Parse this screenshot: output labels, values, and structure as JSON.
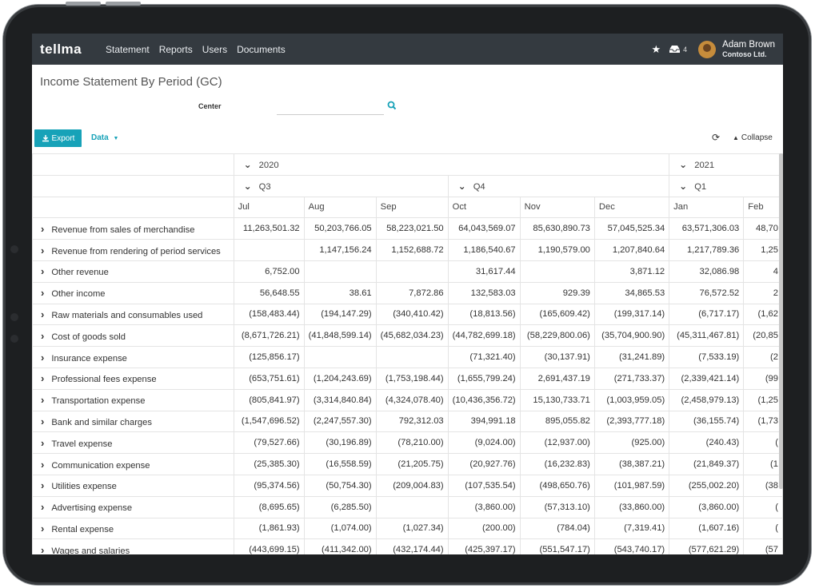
{
  "navbar": {
    "logo": "tellma",
    "items": [
      "Statement",
      "Reports",
      "Users",
      "Documents"
    ],
    "inbox_count": "4",
    "user_name": "Adam Brown",
    "company": "Contoso Ltd."
  },
  "page": {
    "title": "Income Statement By Period (GC)"
  },
  "filter": {
    "label": "Center",
    "value": ""
  },
  "toolbar": {
    "export_label": "Export",
    "data_label": "Data",
    "collapse_label": "Collapse"
  },
  "columns": {
    "years": [
      {
        "label": "2020",
        "span": 6
      },
      {
        "label": "2021",
        "span": 2
      }
    ],
    "quarters": [
      {
        "label": "Q3",
        "span": 3
      },
      {
        "label": "Q4",
        "span": 3
      },
      {
        "label": "Q1",
        "span": 2
      }
    ],
    "months": [
      "Jul",
      "Aug",
      "Sep",
      "Oct",
      "Nov",
      "Dec",
      "Jan",
      "Feb"
    ]
  },
  "rows": [
    {
      "label": "Revenue from sales of merchandise",
      "values": [
        "11,263,501.32",
        "50,203,766.05",
        "58,223,021.50",
        "64,043,569.07",
        "85,630,890.73",
        "57,045,525.34",
        "63,571,306.03",
        "48,70"
      ]
    },
    {
      "label": "Revenue from rendering of period services",
      "values": [
        "",
        "1,147,156.24",
        "1,152,688.72",
        "1,186,540.67",
        "1,190,579.00",
        "1,207,840.64",
        "1,217,789.36",
        "1,25"
      ]
    },
    {
      "label": "Other revenue",
      "values": [
        "6,752.00",
        "",
        "",
        "31,617.44",
        "",
        "3,871.12",
        "32,086.98",
        "4"
      ]
    },
    {
      "label": "Other income",
      "values": [
        "56,648.55",
        "38.61",
        "7,872.86",
        "132,583.03",
        "929.39",
        "34,865.53",
        "76,572.52",
        "2"
      ]
    },
    {
      "label": "Raw materials and consumables used",
      "values": [
        "(158,483.44)",
        "(194,147.29)",
        "(340,410.42)",
        "(18,813.56)",
        "(165,609.42)",
        "(199,317.14)",
        "(6,717.17)",
        "(1,62"
      ]
    },
    {
      "label": "Cost of goods sold",
      "values": [
        "(8,671,726.21)",
        "(41,848,599.14)",
        "(45,682,034.23)",
        "(44,782,699.18)",
        "(58,229,800.06)",
        "(35,704,900.90)",
        "(45,311,467.81)",
        "(20,85"
      ]
    },
    {
      "label": "Insurance expense",
      "values": [
        "(125,856.17)",
        "",
        "",
        "(71,321.40)",
        "(30,137.91)",
        "(31,241.89)",
        "(7,533.19)",
        "(2"
      ]
    },
    {
      "label": "Professional fees expense",
      "values": [
        "(653,751.61)",
        "(1,204,243.69)",
        "(1,753,198.44)",
        "(1,655,799.24)",
        "2,691,437.19",
        "(271,733.37)",
        "(2,339,421.14)",
        "(99"
      ]
    },
    {
      "label": "Transportation expense",
      "values": [
        "(805,841.97)",
        "(3,314,840.84)",
        "(4,324,078.40)",
        "(10,436,356.72)",
        "15,130,733.71",
        "(1,003,959.05)",
        "(2,458,979.13)",
        "(1,25"
      ]
    },
    {
      "label": "Bank and similar charges",
      "values": [
        "(1,547,696.52)",
        "(2,247,557.30)",
        "792,312.03",
        "394,991.18",
        "895,055.82",
        "(2,393,777.18)",
        "(36,155.74)",
        "(1,73"
      ]
    },
    {
      "label": "Travel expense",
      "values": [
        "(79,527.66)",
        "(30,196.89)",
        "(78,210.00)",
        "(9,024.00)",
        "(12,937.00)",
        "(925.00)",
        "(240.43)",
        "("
      ]
    },
    {
      "label": "Communication expense",
      "values": [
        "(25,385.30)",
        "(16,558.59)",
        "(21,205.75)",
        "(20,927.76)",
        "(16,232.83)",
        "(38,387.21)",
        "(21,849.37)",
        "(1"
      ]
    },
    {
      "label": "Utilities expense",
      "values": [
        "(95,374.56)",
        "(50,754.30)",
        "(209,004.83)",
        "(107,535.54)",
        "(498,650.76)",
        "(101,987.59)",
        "(255,002.20)",
        "(38"
      ]
    },
    {
      "label": "Advertising expense",
      "values": [
        "(8,695.65)",
        "(6,285.50)",
        "",
        "(3,860.00)",
        "(57,313.10)",
        "(33,860.00)",
        "(3,860.00)",
        "("
      ]
    },
    {
      "label": "Rental expense",
      "values": [
        "(1,861.93)",
        "(1,074.00)",
        "(1,027.34)",
        "(200.00)",
        "(784.04)",
        "(7,319.41)",
        "(1,607.16)",
        "("
      ]
    },
    {
      "label": "Wages and salaries",
      "values": [
        "(443,699.15)",
        "(411,342.00)",
        "(432,174.44)",
        "(425,397.17)",
        "(551,547.17)",
        "(543,740.17)",
        "(577,621.29)",
        "(57"
      ]
    }
  ]
}
